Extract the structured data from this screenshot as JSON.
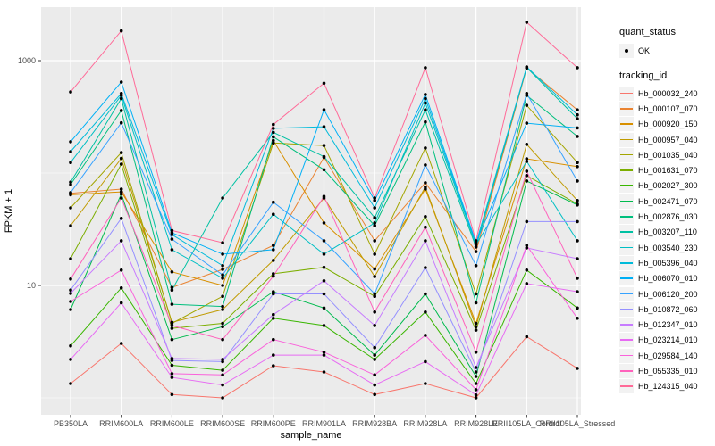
{
  "figure": {
    "bg": "#FFFFFF",
    "panel_bg": "#EBEBEB",
    "grid_color": "#FFFFFF",
    "axis_text_color": "#4D4D4D",
    "axis_title_color": "#000000",
    "tick_color": "#333333",
    "point_color": "#000000",
    "legend_key_bg": "#F2F2F2"
  },
  "legend": {
    "quant_status": {
      "title": "quant_status",
      "items": [
        {
          "label": "OK",
          "marker": "black-point"
        }
      ]
    },
    "tracking_id": {
      "title": "tracking_id"
    }
  },
  "chart_data": {
    "type": "line",
    "title": "",
    "xlabel": "sample_name",
    "ylabel": "FPKM + 1",
    "y_scale": "log10",
    "ylim": [
      0.85,
      3200
    ],
    "grid": true,
    "legend_position": "right",
    "y_major_ticks": [
      {
        "value": 10,
        "label": "10"
      },
      {
        "value": 1000,
        "label": "1000"
      }
    ],
    "y_minor_gridlines": [
      1,
      100
    ],
    "point_marker": {
      "shape": "circle",
      "color": "#000000",
      "radius": 1.8
    },
    "categories": [
      "PB350LA",
      "RRIM600LA",
      "RRIM600LE",
      "RRIM600SE",
      "RRIM600PE",
      "RRIM901LA",
      "RRIM928BA",
      "RRIM928LA",
      "RRIM928LE",
      "RRII105LA_Control",
      "RRII105LA_Stressed"
    ],
    "series": [
      {
        "name": "Hb_000032_240",
        "color": "#F8766D",
        "values": [
          1.34,
          3.05,
          1.07,
          1.0,
          1.93,
          1.7,
          1.07,
          1.34,
          1.0,
          3.5,
          1.83
        ]
      },
      {
        "name": "Hb_000107_070",
        "color": "#EA8331",
        "values": [
          66,
          72,
          9.6,
          13.9,
          22.7,
          138,
          25,
          82,
          20,
          860,
          365
        ]
      },
      {
        "name": "Hb_000920_150",
        "color": "#D89000",
        "values": [
          64,
          68,
          13.2,
          10,
          195,
          36,
          14,
          72,
          4.6,
          134,
          114
        ]
      },
      {
        "name": "Hb_000957_040",
        "color": "#C09B00",
        "values": [
          34,
          135,
          4.7,
          6.1,
          16.7,
          60,
          12,
          75,
          4.3,
          180,
          57
        ]
      },
      {
        "name": "Hb_001035_040",
        "color": "#A3A500",
        "values": [
          49,
          152,
          4.6,
          8.0,
          185,
          176,
          19,
          167,
          8.4,
          400,
          124
        ]
      },
      {
        "name": "Hb_001631_070",
        "color": "#7CAE00",
        "values": [
          17.3,
          120,
          4.15,
          4.6,
          12.7,
          14.5,
          8.0,
          41,
          4.0,
          95,
          53
        ]
      },
      {
        "name": "Hb_002027_300",
        "color": "#39B600",
        "values": [
          2.9,
          9.5,
          1.95,
          1.76,
          5.1,
          4.4,
          2.2,
          5.8,
          1.34,
          13.7,
          6.3
        ]
      },
      {
        "name": "Hb_002471_070",
        "color": "#00BB4E",
        "values": [
          6.1,
          65,
          3.3,
          4.3,
          8.8,
          6.3,
          2.4,
          8.4,
          1.55,
          85,
          52
        ]
      },
      {
        "name": "Hb_002876_030",
        "color": "#00BF7D",
        "values": [
          79,
          360,
          6.8,
          6.5,
          210,
          107,
          34,
          285,
          7.0,
          490,
          212
        ]
      },
      {
        "name": "Hb_003207_110",
        "color": "#00C1A3",
        "values": [
          83,
          460,
          9.1,
          60,
          230,
          140,
          40,
          365,
          22,
          870,
          305
        ]
      },
      {
        "name": "Hb_003540_230",
        "color": "#00BFC4",
        "values": [
          124,
          490,
          20.8,
          11.6,
          43,
          19,
          36,
          420,
          23,
          127,
          25
        ]
      },
      {
        "name": "Hb_005396_040",
        "color": "#00BBDA",
        "values": [
          155,
          510,
          28.3,
          15,
          250,
          258,
          49,
          460,
          23.5,
          880,
          330
        ]
      },
      {
        "name": "Hb_006070_010",
        "color": "#00B0F6",
        "values": [
          190,
          645,
          29.4,
          19,
          20.8,
          366,
          57,
          500,
          24,
          278,
          252
        ]
      },
      {
        "name": "Hb_006120_200",
        "color": "#35A2FF",
        "values": [
          67,
          280,
          25.8,
          12.4,
          55,
          25,
          8.4,
          118,
          15,
          510,
          85
        ]
      },
      {
        "name": "Hb_010872_060",
        "color": "#9590FF",
        "values": [
          9.1,
          39.5,
          2.15,
          2.1,
          8.4,
          8.4,
          2.8,
          14.4,
          1.7,
          37,
          37
        ]
      },
      {
        "name": "Hb_012347_010",
        "color": "#C77CFF",
        "values": [
          8.5,
          25,
          2.24,
          2.2,
          5.5,
          11,
          4.4,
          25,
          1.86,
          21.6,
          17.3
        ]
      },
      {
        "name": "Hb_023214_010",
        "color": "#E76BF3",
        "values": [
          2.2,
          7.0,
          1.52,
          1.3,
          2.4,
          2.4,
          1.3,
          2.1,
          1.06,
          10.4,
          8.8
        ]
      },
      {
        "name": "Hb_029584_140",
        "color": "#FA62DB",
        "values": [
          7.2,
          13.7,
          1.64,
          1.6,
          3.3,
          2.55,
          1.6,
          3.6,
          1.18,
          22.7,
          5.1
        ]
      },
      {
        "name": "Hb_055335_010",
        "color": "#FF62BC",
        "values": [
          11.4,
          60,
          4.4,
          3.3,
          12.1,
          62,
          5.8,
          33,
          2.55,
          104,
          11.6
        ]
      },
      {
        "name": "Hb_124315_040",
        "color": "#FF6A98",
        "values": [
          527,
          1840,
          30.8,
          24,
          270,
          630,
          60,
          865,
          25,
          2200,
          865
        ]
      }
    ]
  }
}
